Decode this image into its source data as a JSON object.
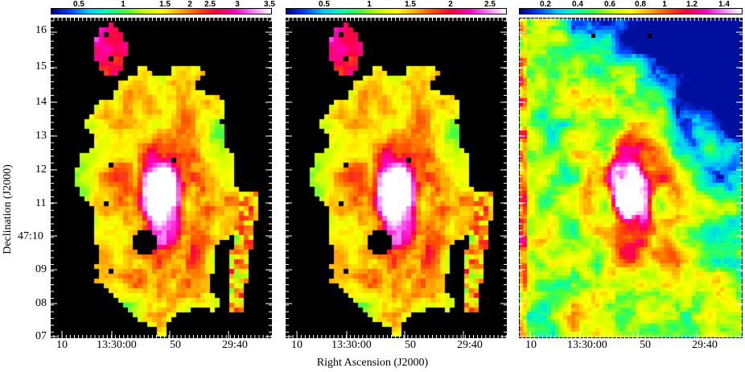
{
  "figure": {
    "ylabel": "Declination (J2000)",
    "xlabel": "Right Ascension (J2000)",
    "y_ticks": [
      "16",
      "15",
      "14",
      "13",
      "12",
      "11",
      "47:10",
      "09",
      "08",
      "07"
    ],
    "x_ticks": [
      "10",
      "13:30:00",
      "50",
      "29:40"
    ]
  },
  "panels": [
    {
      "name": "left-map",
      "colorbar_ticks": [
        "0.5",
        "1",
        "1.5",
        "2",
        "2.5",
        "3",
        "3.5"
      ],
      "colorbar_range": [
        0.0,
        3.5
      ],
      "masked": true
    },
    {
      "name": "middle-map",
      "colorbar_ticks": [
        "0.5",
        "1",
        "1.5",
        "2",
        "2.5"
      ],
      "colorbar_range": [
        0.0,
        2.8
      ],
      "masked": true
    },
    {
      "name": "right-map",
      "colorbar_ticks": [
        "0.2",
        "0.4",
        "0.6",
        "0.8",
        "1",
        "1.2",
        "1.4"
      ],
      "colorbar_range": [
        0.05,
        1.5
      ],
      "masked": false
    }
  ],
  "colors": {
    "background": "#000000",
    "colormap": [
      "#000080",
      "#0040ff",
      "#00c8ff",
      "#00ffb0",
      "#40ff40",
      "#c8ff00",
      "#ffff00",
      "#ffb000",
      "#ff5000",
      "#ff0040",
      "#ff00c0",
      "#ff80ff",
      "#ffffff"
    ]
  }
}
